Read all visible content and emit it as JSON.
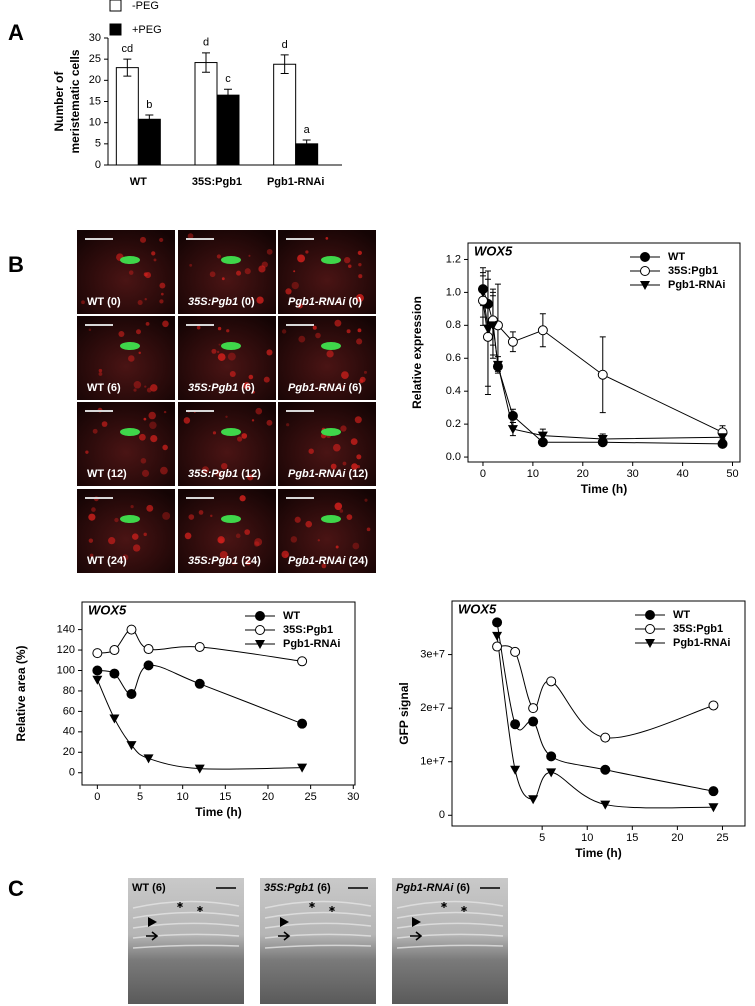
{
  "panel_labels": [
    "A",
    "B",
    "C"
  ],
  "micrographs_b": {
    "genotype_italic": [
      false,
      true,
      true
    ],
    "labels": [
      "WT (0)",
      "35S:Pgb1 (0)",
      "Pgb1-RNAi (0)",
      "WT (6)",
      "35S:Pgb1 (6)",
      "Pgb1-RNAi (6)",
      "WT (12)",
      "35S:Pgb1 (12)",
      "Pgb1-RNAi (12)",
      "WT (24)",
      "35S:Pgb1 (24)",
      "Pgb1-RNAi (24)"
    ]
  },
  "micrographs_c": {
    "genotype_italic": [
      false,
      true,
      true
    ],
    "labels": [
      "WT (6)",
      "35S:Pgb1 (6)",
      "Pgb1-RNAi (6)"
    ]
  },
  "chart_data": [
    {
      "type": "bar",
      "categories": [
        "WT",
        "35S:Pgb1",
        "Pgb1-RNAi"
      ],
      "ylabel": [
        "Number of",
        "meristematic cells"
      ],
      "ylim": [
        0,
        30
      ],
      "yticks": [
        0,
        5,
        10,
        15,
        20,
        25,
        30
      ],
      "legend": "top-left",
      "series": [
        {
          "name": "-PEG",
          "color": "#ffffff",
          "values": [
            23,
            24.2,
            23.8
          ],
          "errors": [
            2,
            2.3,
            2.2
          ],
          "letters": [
            "cd",
            "d",
            "d"
          ]
        },
        {
          "name": "+PEG",
          "color": "#000000",
          "values": [
            10.8,
            16.5,
            5
          ],
          "errors": [
            1,
            1.4,
            0.9
          ],
          "letters": [
            "b",
            "c",
            "a"
          ]
        }
      ]
    },
    {
      "type": "line",
      "title": "WOX5",
      "xlabel": "Time (h)",
      "ylabel": "Relative expression",
      "smooth": false,
      "legend": "top-right",
      "x": [
        0,
        1,
        2,
        3,
        6,
        12,
        24,
        48
      ],
      "xlim": [
        -3,
        51.5
      ],
      "xticks": [
        0,
        10,
        20,
        30,
        40,
        50
      ],
      "ylim": [
        -0.03,
        1.3
      ],
      "yticks": [
        {
          "value": 0,
          "label": "0.0"
        },
        0.2,
        0.4,
        0.6,
        0.8,
        {
          "value": 1,
          "label": "1.0"
        },
        1.2
      ],
      "series": [
        {
          "name": "WT",
          "color": "#000000",
          "marker": "filled-circle",
          "values": [
            1.02,
            0.93,
            0.82,
            0.55,
            0.25,
            0.09,
            0.09,
            0.08
          ],
          "errors": [
            0.1,
            0.2,
            0.2,
            0.03,
            0.04,
            0.02,
            0.02,
            0.02
          ]
        },
        {
          "name": "35S:Pgb1",
          "color": "#000000",
          "marker": "open-circle",
          "values": [
            0.95,
            0.73,
            0.83,
            0.8,
            0.7,
            0.77,
            0.5,
            0.15
          ],
          "errors": [
            0.15,
            0.35,
            0.15,
            0.25,
            0.06,
            0.1,
            0.23,
            0.04
          ]
        },
        {
          "name": "Pgb1-RNAi",
          "color": "#000000",
          "marker": "triangle-down",
          "values": [
            1.0,
            0.78,
            0.8,
            0.56,
            0.17,
            0.13,
            0.11,
            0.12
          ],
          "errors": [
            0.15,
            0.35,
            0.2,
            0.05,
            0.04,
            0.04,
            0.03,
            0.03
          ]
        }
      ]
    },
    {
      "type": "line",
      "title": "WOX5",
      "xlabel": "Time (h)",
      "ylabel": "Relative area (%)",
      "smooth": true,
      "legend": "top-right",
      "x": [
        0,
        2,
        4,
        6,
        12,
        24
      ],
      "xlim": [
        -1.8,
        30.2
      ],
      "xticks": [
        0,
        5,
        10,
        15,
        20,
        25,
        30
      ],
      "ylim": [
        -12,
        167
      ],
      "yticks": [
        0,
        20,
        40,
        60,
        80,
        100,
        120,
        140
      ],
      "series": [
        {
          "name": "WT",
          "color": "#000000",
          "marker": "filled-circle",
          "values": [
            100,
            97,
            77,
            105,
            87,
            48
          ]
        },
        {
          "name": "35S:Pgb1",
          "color": "#000000",
          "marker": "open-circle",
          "values": [
            117,
            120,
            140,
            121,
            123,
            109
          ]
        },
        {
          "name": "Pgb1-RNAi",
          "color": "#000000",
          "marker": "triangle-down",
          "values": [
            91,
            53,
            27,
            14,
            4,
            5
          ]
        }
      ]
    },
    {
      "type": "line",
      "title": "WOX5",
      "xlabel": "Time (h)",
      "ylabel": "GFP signal",
      "smooth": true,
      "legend": "top-right",
      "x": [
        0,
        2,
        4,
        6,
        12,
        24
      ],
      "xlim": [
        -5,
        27.5
      ],
      "xticks": [
        5,
        10,
        15,
        20,
        25
      ],
      "ylim": [
        -2000000,
        40000000
      ],
      "yticks": [
        0,
        {
          "value": 10000000,
          "label": "1e+7"
        },
        {
          "value": 20000000,
          "label": "2e+7"
        },
        {
          "value": 30000000,
          "label": "3e+7"
        }
      ],
      "series": [
        {
          "name": "WT",
          "color": "#000000",
          "marker": "filled-circle",
          "values": [
            36000000,
            17000000,
            17500000,
            11000000,
            8500000,
            4500000
          ]
        },
        {
          "name": "35S:Pgb1",
          "color": "#000000",
          "marker": "open-circle",
          "values": [
            31500000,
            30500000,
            20000000,
            25000000,
            14500000,
            20500000
          ]
        },
        {
          "name": "Pgb1-RNAi",
          "color": "#000000",
          "marker": "triangle-down",
          "values": [
            33500000,
            8500000,
            3000000,
            8000000,
            2000000,
            1500000
          ]
        }
      ]
    }
  ]
}
